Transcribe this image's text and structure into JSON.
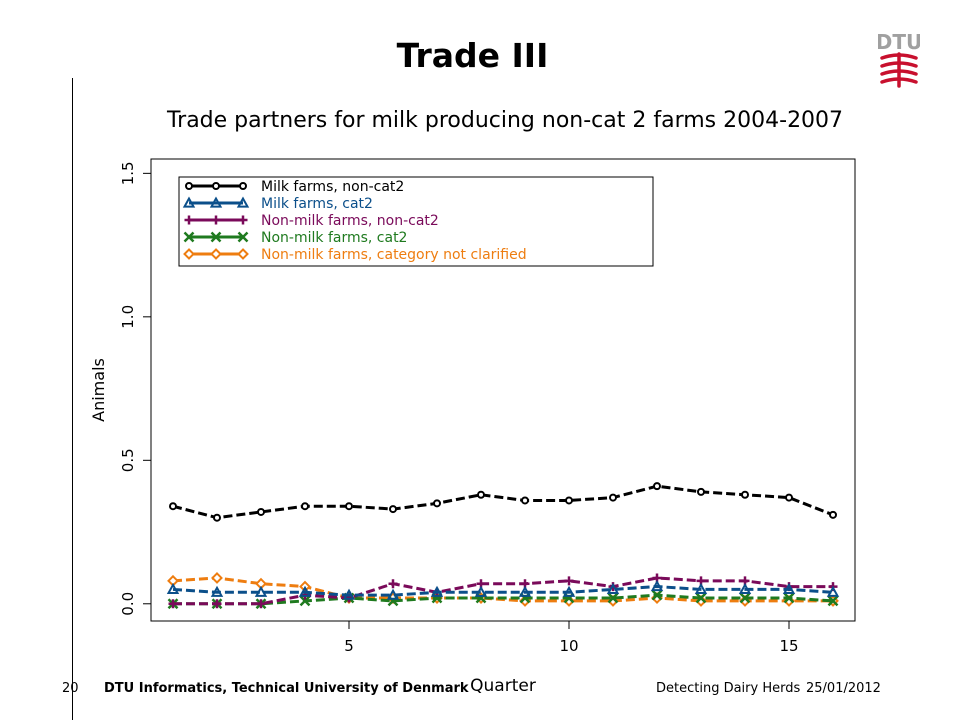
{
  "slide": {
    "title": "Trade III",
    "logo_text": "DTU",
    "footer": {
      "page": "20",
      "organization": "DTU Informatics, Technical University of Denmark",
      "talk": "Detecting Dairy Herds",
      "date": "25/01/2012"
    }
  },
  "colors": {
    "logo": "#c8102e"
  },
  "chart_data": {
    "type": "line",
    "title": "Trade partners for milk producing non-cat 2 farms 2004-2007",
    "xlabel": "Quarter",
    "ylabel": "Animals",
    "xlim": [
      0.5,
      16.5
    ],
    "ylim": [
      -0.06,
      1.55
    ],
    "xticks": [
      5,
      10,
      15
    ],
    "yticks": [
      0.0,
      0.5,
      1.0,
      1.5
    ],
    "ytick_labels": [
      "0.0",
      "0.5",
      "1.0",
      "1.5"
    ],
    "legend_position": "top-left",
    "grid": false,
    "x": [
      1,
      2,
      3,
      4,
      5,
      6,
      7,
      8,
      9,
      10,
      11,
      12,
      13,
      14,
      15,
      16
    ],
    "series": [
      {
        "name": "Milk farms, non-cat2",
        "color": "#000000",
        "marker": "circle",
        "values": [
          0.34,
          0.3,
          0.32,
          0.34,
          0.34,
          0.33,
          0.35,
          0.38,
          0.36,
          0.36,
          0.37,
          0.41,
          0.39,
          0.38,
          0.37,
          0.31
        ]
      },
      {
        "name": "Milk farms, cat2",
        "color": "#0b4f8a",
        "marker": "triangle",
        "values": [
          0.05,
          0.04,
          0.04,
          0.04,
          0.03,
          0.03,
          0.04,
          0.04,
          0.04,
          0.04,
          0.05,
          0.06,
          0.05,
          0.05,
          0.05,
          0.04
        ]
      },
      {
        "name": "Non-milk farms, non-cat2",
        "color": "#7a0a5a",
        "marker": "plus",
        "values": [
          0.0,
          0.0,
          0.0,
          0.03,
          0.02,
          0.07,
          0.04,
          0.07,
          0.07,
          0.08,
          0.06,
          0.09,
          0.08,
          0.08,
          0.06,
          0.06
        ]
      },
      {
        "name": "Non-milk farms, cat2",
        "color": "#1f7a1f",
        "marker": "x",
        "values": [
          0.0,
          0.0,
          0.0,
          0.01,
          0.02,
          0.01,
          0.02,
          0.02,
          0.02,
          0.02,
          0.02,
          0.03,
          0.02,
          0.02,
          0.02,
          0.01
        ]
      },
      {
        "name": "Non-milk farms, category not clarified",
        "color": "#ee7d10",
        "marker": "diamond",
        "values": [
          0.08,
          0.09,
          0.07,
          0.06,
          0.02,
          0.02,
          0.02,
          0.02,
          0.01,
          0.01,
          0.01,
          0.02,
          0.01,
          0.01,
          0.01,
          0.01
        ]
      }
    ]
  }
}
